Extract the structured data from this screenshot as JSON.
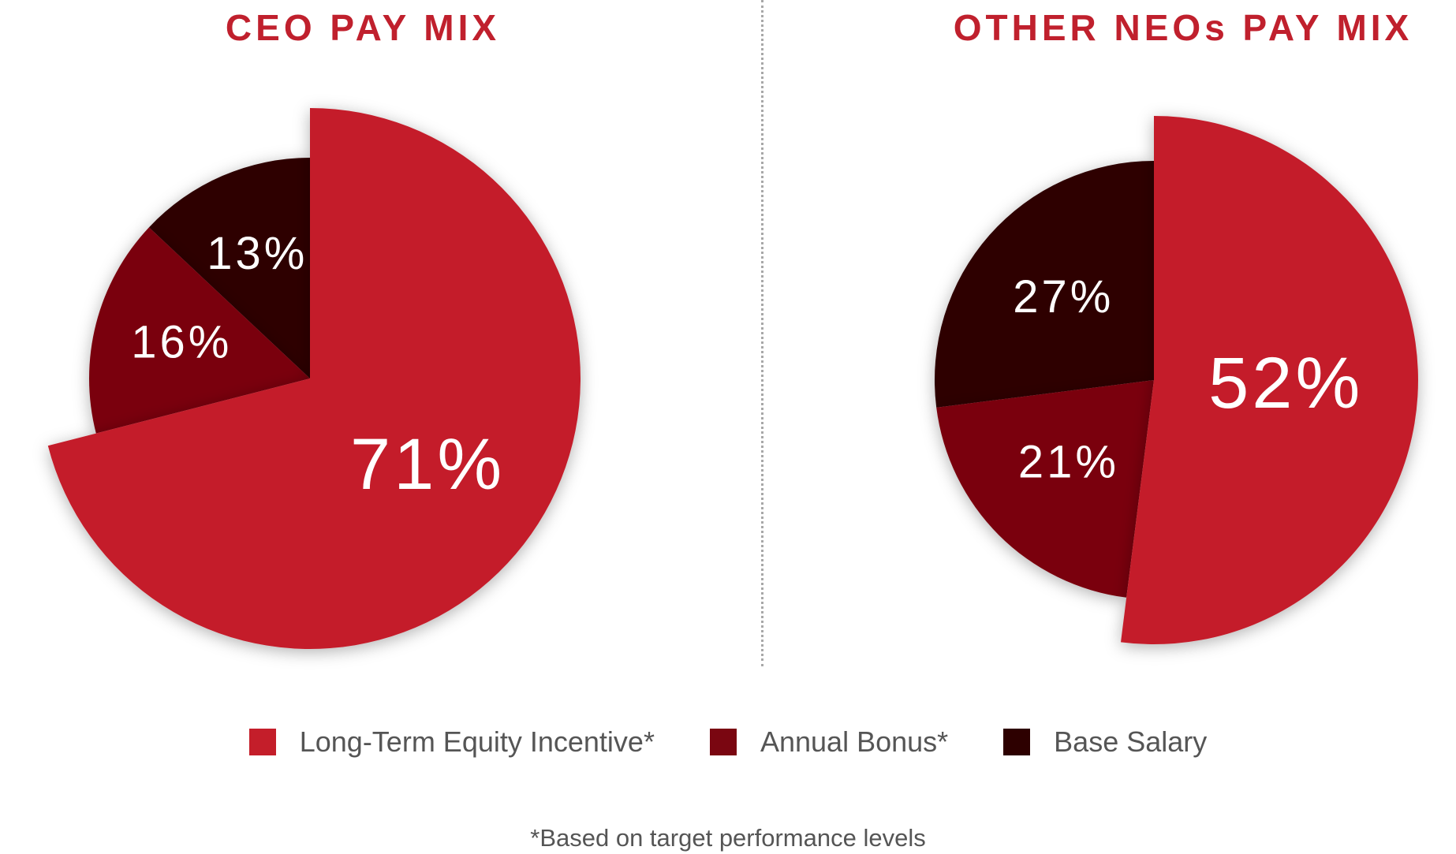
{
  "chart_data": [
    {
      "type": "pie",
      "title": "CEO PAY MIX",
      "categories": [
        "Long-Term Equity Incentive*",
        "Annual Bonus*",
        "Base Salary"
      ],
      "values": [
        71,
        16,
        13
      ],
      "value_labels": [
        "71%",
        "16%",
        "13%"
      ],
      "colors": [
        "#c41e2a",
        "#7a0611",
        "#2d0000"
      ],
      "exploded": "Long-Term Equity Incentive*"
    },
    {
      "type": "pie",
      "title": "OTHER NEOs PAY MIX",
      "categories": [
        "Long-Term Equity Incentive*",
        "Annual Bonus*",
        "Base Salary"
      ],
      "values": [
        52,
        21,
        27
      ],
      "value_labels": [
        "52%",
        "21%",
        "27%"
      ],
      "colors": [
        "#c41e2a",
        "#7a0611",
        "#2d0000"
      ],
      "exploded": "Long-Term Equity Incentive*"
    }
  ],
  "legend": [
    {
      "label": "Long-Term Equity Incentive*",
      "color": "#c41e2a"
    },
    {
      "label": "Annual Bonus*",
      "color": "#7a0611"
    },
    {
      "label": "Base Salary",
      "color": "#2d0000"
    }
  ],
  "footnote": "*Based on target performance levels"
}
